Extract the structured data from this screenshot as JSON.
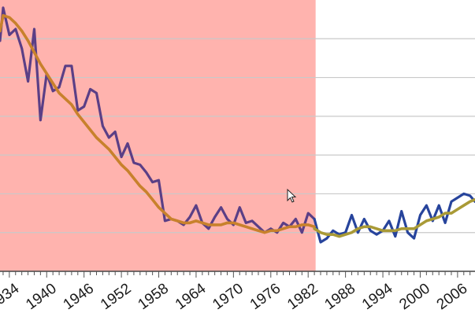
{
  "chart_data": {
    "type": "line",
    "title": "",
    "xlabel": "",
    "ylabel": "",
    "xlim": [
      1932.5,
      2008.8
    ],
    "ylim": [
      0,
      7
    ],
    "grid": {
      "horizontal": true,
      "vertical": false
    },
    "x_ticks": [
      {
        "value": 1934,
        "label": "1934"
      },
      {
        "value": 1940,
        "label": "1940"
      },
      {
        "value": 1946,
        "label": "1946"
      },
      {
        "value": 1952,
        "label": "1952"
      },
      {
        "value": 1958,
        "label": "1958"
      },
      {
        "value": 1964,
        "label": "1964"
      },
      {
        "value": 1970,
        "label": "1970"
      },
      {
        "value": 1976,
        "label": "1976"
      },
      {
        "value": 1982,
        "label": "1982"
      },
      {
        "value": 1988,
        "label": "1988"
      },
      {
        "value": 1994,
        "label": "1994"
      },
      {
        "value": 2000,
        "label": "2000"
      },
      {
        "value": 2006,
        "label": "2006"
      }
    ],
    "y_gridlines": [
      1,
      2,
      3,
      4,
      5,
      6
    ],
    "highlight_region": {
      "x_from": 1932.5,
      "x_to": 1983.2,
      "color": "#ffb3ae"
    },
    "series": [
      {
        "color": "#5b3f86",
        "style": "raw",
        "x": [
          1932.5,
          1933,
          1934,
          1935,
          1936,
          1937,
          1938,
          1939,
          1940,
          1941,
          1942,
          1943,
          1944,
          1945,
          1946,
          1947,
          1948,
          1949,
          1950,
          1951,
          1952,
          1953,
          1954,
          1955,
          1956,
          1957,
          1958,
          1959,
          1960,
          1961,
          1962,
          1963,
          1964,
          1965,
          1966,
          1967,
          1968,
          1969,
          1970,
          1971,
          1972,
          1973,
          1974,
          1975,
          1976,
          1977,
          1978,
          1979,
          1980,
          1981,
          1982,
          1983
        ],
        "y": [
          5.95,
          6.8,
          6.1,
          6.25,
          5.75,
          4.9,
          6.25,
          3.9,
          5.1,
          4.65,
          4.75,
          5.3,
          5.3,
          4.15,
          4.25,
          4.7,
          4.6,
          3.75,
          3.45,
          3.6,
          2.95,
          3.3,
          2.8,
          2.75,
          2.55,
          2.3,
          2.35,
          1.3,
          1.35,
          1.3,
          1.2,
          1.4,
          1.7,
          1.25,
          1.1,
          1.4,
          1.65,
          1.35,
          1.2,
          1.65,
          1.25,
          1.3,
          1.15,
          1.0,
          1.1,
          1.0,
          1.25,
          1.15,
          1.35,
          1.0,
          1.5,
          1.35
        ]
      },
      {
        "color": "#27449c",
        "style": "raw",
        "x": [
          1983,
          1984,
          1985,
          1986,
          1987,
          1988,
          1989,
          1990,
          1991,
          1992,
          1993,
          1994,
          1995,
          1996,
          1997,
          1998,
          1999,
          2000,
          2001,
          2002,
          2003,
          2004,
          2005,
          2006,
          2007,
          2008,
          2008.8
        ],
        "y": [
          1.35,
          0.75,
          0.85,
          1.05,
          0.95,
          1.0,
          1.45,
          1.0,
          1.35,
          1.05,
          0.95,
          1.05,
          1.3,
          0.9,
          1.55,
          1.0,
          0.85,
          1.45,
          1.7,
          1.3,
          1.7,
          1.25,
          1.8,
          1.9,
          2.0,
          1.95,
          1.8
        ]
      },
      {
        "color": "#c8812c",
        "style": "smoothed",
        "x": [
          1932.5,
          1933,
          1934,
          1935,
          1936,
          1937,
          1938,
          1939,
          1940,
          1941,
          1942,
          1943,
          1944,
          1945,
          1946,
          1947,
          1948,
          1949,
          1950,
          1951,
          1952,
          1953,
          1954,
          1955,
          1956,
          1957,
          1958,
          1959,
          1960,
          1961,
          1962,
          1963,
          1964,
          1965,
          1966,
          1967,
          1968,
          1969,
          1970,
          1971,
          1972,
          1973,
          1974,
          1975,
          1976,
          1977,
          1978,
          1979,
          1980,
          1981,
          1982,
          1983
        ],
        "y": [
          6.2,
          6.6,
          6.55,
          6.4,
          6.2,
          5.95,
          5.65,
          5.35,
          5.1,
          4.85,
          4.6,
          4.45,
          4.3,
          4.05,
          3.85,
          3.65,
          3.45,
          3.3,
          3.15,
          2.95,
          2.75,
          2.6,
          2.4,
          2.2,
          2.05,
          1.85,
          1.65,
          1.5,
          1.35,
          1.3,
          1.25,
          1.25,
          1.3,
          1.25,
          1.2,
          1.2,
          1.2,
          1.25,
          1.25,
          1.2,
          1.15,
          1.1,
          1.05,
          1.0,
          1.05,
          1.05,
          1.1,
          1.15,
          1.15,
          1.2,
          1.2,
          1.15
        ]
      },
      {
        "color": "#a99a36",
        "style": "smoothed",
        "x": [
          1983,
          1984,
          1985,
          1986,
          1987,
          1988,
          1989,
          1990,
          1991,
          1992,
          1993,
          1994,
          1995,
          1996,
          1997,
          1998,
          1999,
          2000,
          2001,
          2002,
          2003,
          2004,
          2005,
          2006,
          2007,
          2008,
          2008.8
        ],
        "y": [
          1.1,
          1.0,
          0.95,
          0.95,
          0.9,
          0.95,
          1.0,
          1.1,
          1.15,
          1.15,
          1.1,
          1.05,
          1.05,
          1.05,
          1.1,
          1.1,
          1.1,
          1.2,
          1.3,
          1.35,
          1.4,
          1.5,
          1.5,
          1.6,
          1.7,
          1.8,
          1.85
        ]
      }
    ]
  }
}
